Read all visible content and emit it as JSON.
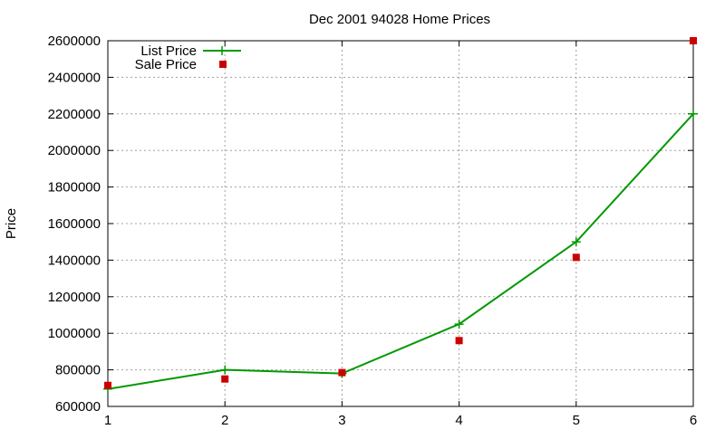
{
  "chart_data": {
    "type": "line",
    "title": "Dec 2001 94028 Home Prices",
    "xlabel": "",
    "ylabel": "Price",
    "xlim": [
      1,
      6
    ],
    "ylim": [
      600000,
      2600000
    ],
    "xticks": [
      "1",
      "2",
      "3",
      "4",
      "5",
      "6"
    ],
    "yticks": [
      "600000",
      "800000",
      "1000000",
      "1200000",
      "1400000",
      "1600000",
      "1800000",
      "2000000",
      "2200000",
      "2400000",
      "2600000"
    ],
    "grid": true,
    "legend_position": "top-left",
    "x": [
      1,
      2,
      3,
      4,
      5,
      6
    ],
    "series": [
      {
        "name": "List Price",
        "style": "line-with-plus-markers",
        "color": "#009900",
        "values": [
          695000,
          800000,
          780000,
          1050000,
          1500000,
          2200000
        ]
      },
      {
        "name": "Sale Price",
        "style": "square-markers",
        "color": "#cc0000",
        "values": [
          715000,
          750000,
          785000,
          960000,
          1415000,
          2600000
        ]
      }
    ]
  }
}
